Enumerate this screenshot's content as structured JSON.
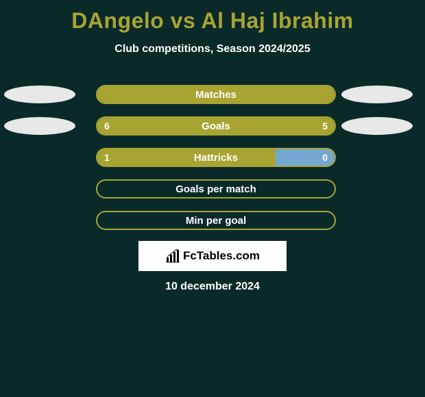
{
  "background_color": "#0a2a2a",
  "accent_color": "#a8a432",
  "right_fill_color": "#75a8d1",
  "oval_color": "#e8e8e8",
  "text_color": "#ffffff",
  "title": "DAngelo vs Al Haj Ibrahim",
  "subtitle": "Club competitions, Season 2024/2025",
  "date": "10 december 2024",
  "brand": "FcTables.com",
  "rows": [
    {
      "label": "Matches",
      "left_value": "",
      "right_value": "",
      "left_fill_pct": 100,
      "right_fill_pct": 0,
      "show_left_oval": true,
      "show_right_oval": true
    },
    {
      "label": "Goals",
      "left_value": "6",
      "right_value": "5",
      "left_fill_pct": 100,
      "right_fill_pct": 0,
      "show_left_oval": true,
      "show_right_oval": true
    },
    {
      "label": "Hattricks",
      "left_value": "1",
      "right_value": "0",
      "left_fill_pct": 75,
      "right_fill_pct": 25,
      "show_left_oval": false,
      "show_right_oval": false
    },
    {
      "label": "Goals per match",
      "left_value": "",
      "right_value": "",
      "left_fill_pct": 0,
      "right_fill_pct": 0,
      "show_left_oval": false,
      "show_right_oval": false
    },
    {
      "label": "Min per goal",
      "left_value": "",
      "right_value": "",
      "left_fill_pct": 0,
      "right_fill_pct": 0,
      "show_left_oval": false,
      "show_right_oval": false
    }
  ]
}
